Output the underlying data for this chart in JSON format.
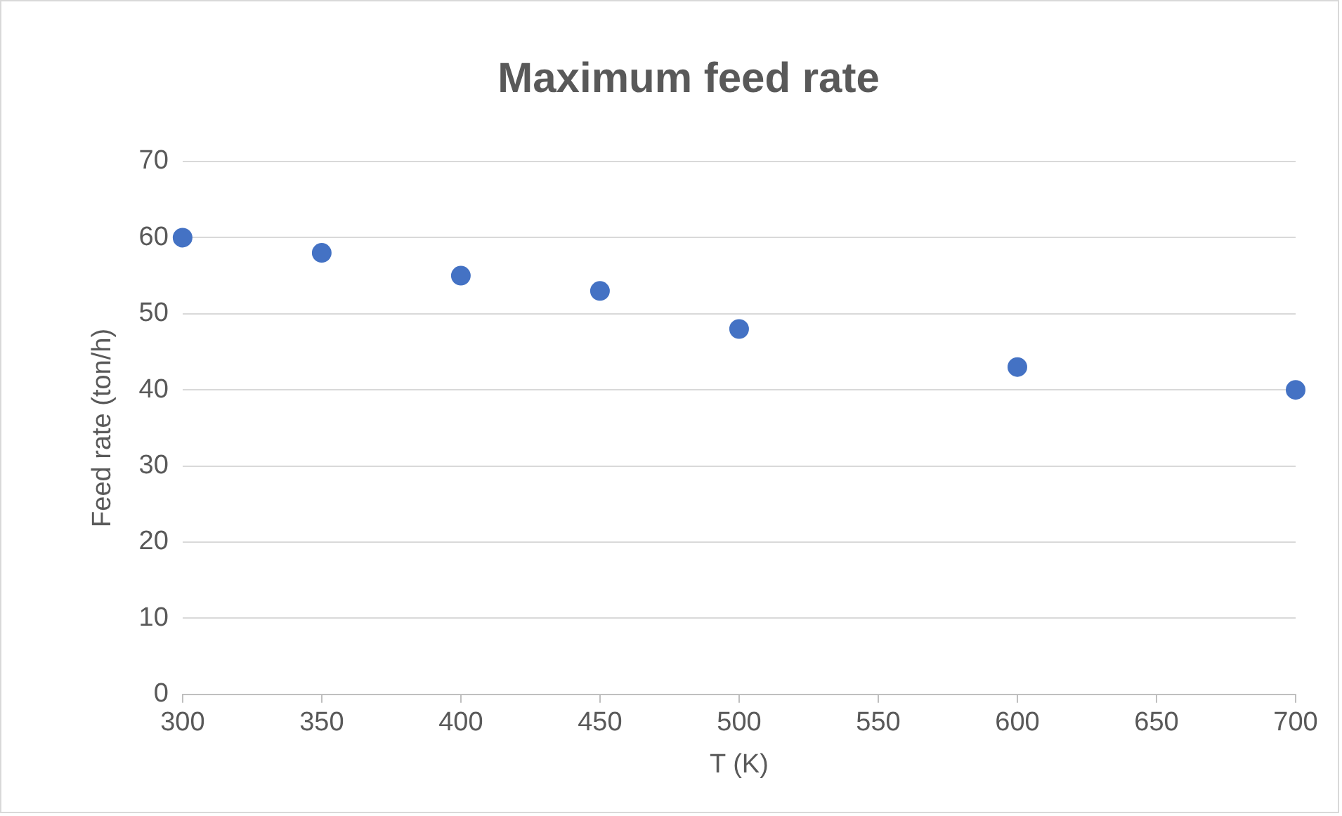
{
  "chart_data": {
    "type": "scatter",
    "title": "Maximum feed rate",
    "xlabel": "T (K)",
    "ylabel": "Feed rate (ton/h)",
    "x": [
      300,
      350,
      400,
      450,
      500,
      600,
      700
    ],
    "series": [
      {
        "color": "#4472c4",
        "values": [
          60,
          58,
          55,
          53,
          48,
          43,
          40
        ]
      }
    ],
    "xlim": [
      300,
      700
    ],
    "xticks": [
      300,
      350,
      400,
      450,
      500,
      550,
      600,
      650,
      700
    ],
    "ylim": [
      0,
      70
    ],
    "yticks": [
      0,
      10,
      20,
      30,
      40,
      50,
      60,
      70
    ],
    "grid": "y",
    "marker": "circle",
    "legend": false
  }
}
